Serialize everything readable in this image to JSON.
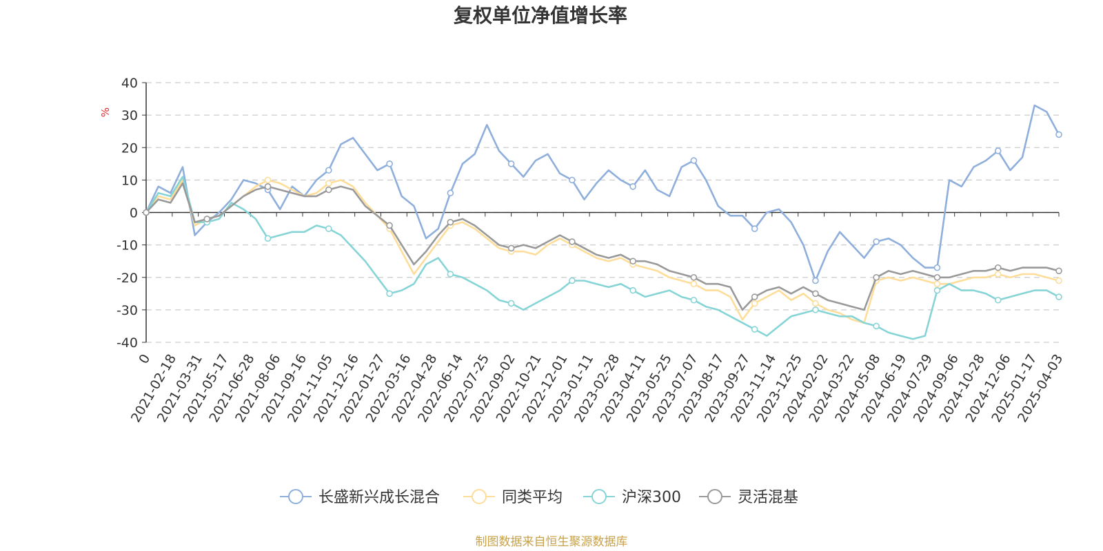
{
  "chart_data": {
    "type": "line",
    "title": "复权单位净值增长率",
    "ylabel": "%",
    "ylim": [
      -40,
      40
    ],
    "yticks": [
      -40,
      -30,
      -20,
      -10,
      0,
      10,
      20,
      30,
      40
    ],
    "x_tick_labels": [
      "0",
      "2021-02-18",
      "2021-03-31",
      "2021-05-17",
      "2021-06-28",
      "2021-08-06",
      "2021-09-16",
      "2021-11-05",
      "2021-12-16",
      "2022-01-27",
      "2022-03-16",
      "2022-04-28",
      "2022-06-14",
      "2022-07-25",
      "2022-09-02",
      "2022-10-21",
      "2022-12-01",
      "2023-01-11",
      "2023-02-28",
      "2023-04-11",
      "2023-05-25",
      "2023-07-07",
      "2023-08-17",
      "2023-09-27",
      "2023-11-14",
      "2023-12-25",
      "2024-02-02",
      "2024-03-22",
      "2024-05-08",
      "2024-06-19",
      "2024-07-29",
      "2024-09-06",
      "2024-10-28",
      "2024-12-06",
      "2025-01-17",
      "2025-04-03"
    ],
    "x_index": [
      0,
      1,
      2,
      3,
      4,
      5,
      6,
      7,
      8,
      9,
      10,
      11,
      12,
      13,
      14,
      15,
      16,
      17,
      18,
      19,
      20,
      21,
      22,
      23,
      24,
      25,
      26,
      27,
      28,
      29,
      30,
      31,
      32,
      33,
      34,
      35,
      36,
      37,
      38,
      39,
      40,
      41,
      42,
      43,
      44,
      45,
      46,
      47,
      48,
      49,
      50,
      51,
      52,
      53,
      54,
      55,
      56,
      57,
      58,
      59,
      60,
      61,
      62,
      63,
      64,
      65,
      66,
      67,
      68,
      69,
      70,
      71,
      72,
      73,
      74,
      75
    ],
    "series": [
      {
        "name": "长盛新兴成长混合",
        "color": "#8eaedc",
        "values": [
          0,
          8,
          6,
          14,
          -7,
          -3,
          0,
          4,
          10,
          9,
          7,
          1,
          8,
          5,
          10,
          13,
          21,
          23,
          18,
          13,
          15,
          5,
          2,
          -8,
          -5,
          6,
          15,
          18,
          27,
          19,
          15,
          11,
          16,
          18,
          12,
          10,
          4,
          9,
          13,
          10,
          8,
          13,
          7,
          5,
          14,
          16,
          10,
          2,
          -1,
          -1,
          -5,
          0,
          1,
          -3,
          -10,
          -21,
          -12,
          -6,
          -10,
          -14,
          -9,
          -8,
          -10,
          -14,
          -17,
          -17,
          10,
          8,
          14,
          16,
          19,
          13,
          17,
          33,
          31,
          24
        ]
      },
      {
        "name": "同类平均",
        "color": "#fddd99",
        "values": [
          0,
          5,
          4,
          10,
          -4,
          -2,
          -1,
          2,
          5,
          8,
          10,
          9,
          7,
          5,
          6,
          9,
          10,
          8,
          3,
          -1,
          -5,
          -12,
          -19,
          -14,
          -9,
          -4,
          -3,
          -5,
          -8,
          -11,
          -12,
          -12,
          -13,
          -10,
          -8,
          -10,
          -12,
          -14,
          -15,
          -14,
          -16,
          -17,
          -18,
          -20,
          -21,
          -22,
          -24,
          -24,
          -26,
          -33,
          -28,
          -26,
          -24,
          -27,
          -25,
          -28,
          -30,
          -31,
          -33,
          -34,
          -21,
          -20,
          -21,
          -20,
          -21,
          -22,
          -22,
          -21,
          -20,
          -20,
          -19,
          -20,
          -19,
          -19,
          -20,
          -21
        ]
      },
      {
        "name": "沪深300",
        "color": "#86d4d6",
        "values": [
          0,
          6,
          5,
          11,
          -3,
          -3,
          -2,
          3,
          1,
          -2,
          -8,
          -7,
          -6,
          -6,
          -4,
          -5,
          -7,
          -11,
          -15,
          -20,
          -25,
          -24,
          -22,
          -16,
          -14,
          -19,
          -20,
          -22,
          -24,
          -27,
          -28,
          -30,
          -28,
          -26,
          -24,
          -21,
          -21,
          -22,
          -23,
          -22,
          -24,
          -26,
          -25,
          -24,
          -26,
          -27,
          -29,
          -30,
          -32,
          -34,
          -36,
          -38,
          -35,
          -32,
          -31,
          -30,
          -31,
          -32,
          -32,
          -34,
          -35,
          -37,
          -38,
          -39,
          -38,
          -24,
          -22,
          -24,
          -24,
          -25,
          -27,
          -26,
          -25,
          -24,
          -24,
          -26
        ]
      },
      {
        "name": "灵活混基",
        "color": "#999999",
        "values": [
          0,
          4,
          3,
          9,
          -3,
          -2,
          -1,
          2,
          5,
          7,
          8,
          7,
          6,
          5,
          5,
          7,
          8,
          7,
          2,
          -1,
          -4,
          -10,
          -16,
          -12,
          -7,
          -3,
          -2,
          -4,
          -7,
          -10,
          -11,
          -10,
          -11,
          -9,
          -7,
          -9,
          -11,
          -13,
          -14,
          -13,
          -15,
          -15,
          -16,
          -18,
          -19,
          -20,
          -22,
          -22,
          -23,
          -30,
          -26,
          -24,
          -23,
          -25,
          -23,
          -25,
          -27,
          -28,
          -29,
          -30,
          -20,
          -18,
          -19,
          -18,
          -19,
          -20,
          -20,
          -19,
          -18,
          -18,
          -17,
          -18,
          -17,
          -17,
          -17,
          -18
        ]
      }
    ],
    "legend_position": "bottom",
    "grid": true
  },
  "source_note": "制图数据来自恒生聚源数据库"
}
